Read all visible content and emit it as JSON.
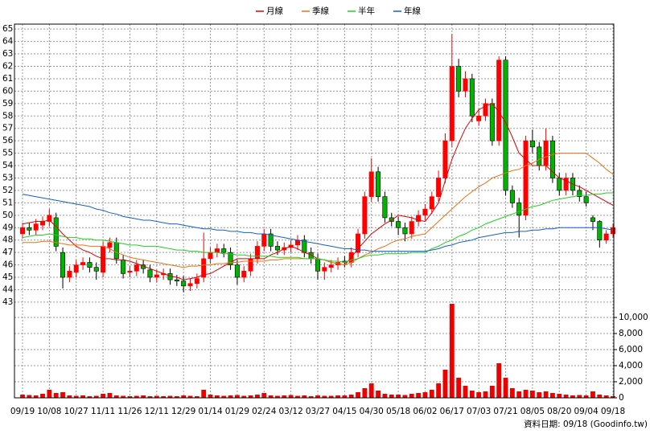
{
  "chart_data": [
    {
      "type": "candlestick",
      "categories": [
        "09/19",
        null,
        null,
        null,
        "10/08",
        null,
        null,
        null,
        "10/27",
        null,
        null,
        null,
        "11/11",
        null,
        null,
        null,
        "11/26",
        null,
        null,
        null,
        "12/11",
        null,
        null,
        null,
        "12/29",
        null,
        null,
        null,
        "01/14",
        null,
        null,
        null,
        "01/29",
        null,
        null,
        null,
        "02/24",
        null,
        null,
        null,
        "03/12",
        null,
        null,
        null,
        "03/27",
        null,
        null,
        null,
        "04/15",
        null,
        null,
        null,
        "04/30",
        null,
        null,
        null,
        "05/18",
        null,
        null,
        null,
        "06/02",
        null,
        null,
        null,
        "06/17",
        null,
        null,
        null,
        "07/03",
        null,
        null,
        null,
        "07/21",
        null,
        null,
        null,
        "08/05",
        null,
        null,
        null,
        "08/20",
        null,
        null,
        null,
        "09/04",
        null,
        null,
        null,
        "09/18"
      ],
      "open": [
        48.5,
        49,
        48.8,
        49.2,
        49.5,
        49.8,
        47,
        45,
        45.4,
        46,
        46.2,
        45.8,
        45.4,
        47.4,
        47.8,
        46.4,
        45.4,
        45.5,
        46,
        45.6,
        45,
        45.2,
        45.3,
        44.8,
        44.7,
        44.3,
        44.5,
        45,
        46.5,
        47,
        47.3,
        47,
        46,
        45,
        45.5,
        46.5,
        47.5,
        48.5,
        47.5,
        47.2,
        47.4,
        47.6,
        48,
        47,
        46.5,
        45.5,
        45.8,
        46,
        46.3,
        46.2,
        47,
        48.5,
        51.5,
        53.5,
        51.5,
        49.8,
        49.5,
        49,
        48.5,
        49.5,
        50,
        50.5,
        51.5,
        53,
        56,
        62,
        60,
        61,
        57.6,
        58,
        59,
        56,
        62.5,
        52,
        51,
        50,
        56,
        55.5,
        54,
        56,
        53,
        52,
        53,
        52,
        51.5,
        49.8,
        49.5,
        48,
        48.5
      ],
      "high": [
        49.4,
        49.4,
        49.7,
        49.9,
        50.5,
        50.2,
        47.4,
        45.9,
        46.4,
        46.6,
        46.6,
        46.2,
        47.9,
        48.2,
        48.2,
        46.8,
        45.9,
        46.4,
        46.4,
        46,
        45.6,
        45.7,
        45.7,
        45.2,
        45.1,
        44.9,
        45.3,
        48.6,
        47.4,
        47.7,
        47.7,
        47.4,
        46.4,
        45.9,
        46.9,
        47.9,
        48.9,
        48.9,
        47.9,
        47.8,
        48,
        48.4,
        48.4,
        47.4,
        46.9,
        46.2,
        46.4,
        46.6,
        46.7,
        47.4,
        48.9,
        51.9,
        54.6,
        53.9,
        51.9,
        50.2,
        49.9,
        49.4,
        49.9,
        50.4,
        50.9,
        51.9,
        53.6,
        56.6,
        64.6,
        62.6,
        61.6,
        61.4,
        58.6,
        59.4,
        59.4,
        62.8,
        62.8,
        52.4,
        51.4,
        56.4,
        56.9,
        55.9,
        57,
        56.4,
        53.4,
        53.4,
        53.4,
        52.4,
        51.9,
        50,
        49.6,
        48.8,
        49.3
      ],
      "low": [
        48.1,
        48.4,
        48.4,
        48.8,
        49.1,
        47.1,
        44.1,
        44.6,
        45,
        45.6,
        45.4,
        44.8,
        45,
        47,
        46.1,
        44.9,
        45,
        45.1,
        45.3,
        44.6,
        44.6,
        44.8,
        44.4,
        44.3,
        43.8,
        43.9,
        44.1,
        44.6,
        46.1,
        46.6,
        46.6,
        45.6,
        44.4,
        44.6,
        45.1,
        46.1,
        47.1,
        47.1,
        46.8,
        46.8,
        47,
        47.2,
        46.6,
        46.1,
        44.8,
        44.8,
        45.4,
        45.6,
        45.8,
        45.8,
        46.6,
        48.1,
        51.1,
        51.1,
        49.4,
        49.1,
        48.4,
        47.9,
        48.1,
        49.1,
        49.6,
        50.1,
        51.1,
        52.6,
        55.5,
        59.5,
        59.5,
        57.5,
        57.2,
        57.6,
        55.6,
        55.6,
        51.6,
        50.6,
        48.2,
        49.6,
        55,
        53.6,
        53.6,
        52.6,
        51.6,
        51.6,
        51.6,
        51.1,
        50.7,
        48.8,
        47.4,
        47.7,
        48.2
      ],
      "close": [
        49,
        48.8,
        49.3,
        49.5,
        50,
        47.5,
        45,
        45.5,
        46,
        46.2,
        45.8,
        45.5,
        47.5,
        47.8,
        46.5,
        45.3,
        45.5,
        46,
        45.7,
        45,
        45.2,
        45.3,
        44.8,
        44.7,
        44.3,
        44.5,
        44.9,
        46.5,
        47,
        47.3,
        47,
        46,
        45,
        45.5,
        46.5,
        47.5,
        48.5,
        47.5,
        47.2,
        47.4,
        47.6,
        48,
        47,
        46.5,
        45.5,
        45.8,
        46,
        46.2,
        46.2,
        47,
        48.5,
        51.5,
        53.5,
        51.5,
        49.8,
        49.5,
        49,
        48.5,
        49.5,
        50,
        50.5,
        51.5,
        53,
        56,
        62,
        60,
        61,
        58,
        58,
        59,
        56,
        62.5,
        52,
        51,
        50,
        56,
        55.5,
        54,
        56,
        53,
        52,
        53,
        52,
        51.5,
        51,
        49.5,
        48,
        48.5,
        49
      ],
      "up_color": "#ff0000",
      "down_color": "#00b400",
      "series": [
        {
          "name": "月線",
          "color": "#e00000",
          "values": [
            49.3,
            49.4,
            49.5,
            49.5,
            49.6,
            49.1,
            48.5,
            48,
            47.5,
            47.2,
            47,
            46.7,
            46.5,
            46.5,
            46.4,
            46.4,
            46.3,
            46.1,
            45.9,
            45.7,
            45.5,
            45.3,
            45.1,
            45,
            44.8,
            44.9,
            45,
            45.2,
            45.3,
            45.6,
            45.9,
            46.2,
            46.5,
            46.5,
            46.5,
            46.5,
            46.5,
            46.8,
            47,
            47.3,
            47.5,
            47.3,
            47,
            46.8,
            46.5,
            46.4,
            46.2,
            46.1,
            46,
            46.6,
            47.3,
            47.9,
            48.5,
            48.9,
            49.3,
            49.6,
            50,
            49.9,
            49.8,
            49.6,
            49.5,
            50.2,
            51,
            52.8,
            54.5,
            55.8,
            57,
            57.8,
            58.5,
            58.8,
            59,
            58.3,
            57.5,
            56.3,
            55,
            54.5,
            54,
            54,
            54,
            53.5,
            53,
            52.8,
            52.5,
            52.3,
            52,
            51.7,
            51.4,
            51.1,
            50.8
          ]
        },
        {
          "name": "季線",
          "color": "#f07010",
          "values": [
            47.8,
            47.8,
            47.8,
            47.9,
            47.9,
            47.8,
            47.7,
            47.6,
            47.6,
            47.6,
            47.5,
            47.5,
            47.5,
            47.3,
            47,
            46.8,
            46.6,
            46.5,
            46.4,
            46.3,
            46.2,
            46.1,
            46,
            45.9,
            45.8,
            45.9,
            45.9,
            46,
            46,
            46.1,
            46.1,
            46.2,
            46.2,
            46.3,
            46.3,
            46.3,
            46.3,
            46.4,
            46.4,
            46.5,
            46.5,
            46.5,
            46.5,
            46.5,
            46.5,
            46.4,
            46.2,
            46.1,
            46,
            46.2,
            46.5,
            46.8,
            47,
            47.3,
            47.5,
            47.8,
            48,
            48.1,
            48.3,
            48.4,
            48.5,
            49,
            49.5,
            50,
            50.5,
            51,
            51.5,
            51.9,
            52.3,
            52.6,
            53,
            53.2,
            53.4,
            53.6,
            53.7,
            54,
            54.2,
            54.5,
            54.7,
            54.9,
            55,
            55,
            55,
            55,
            55,
            54.6,
            54.2,
            53.7,
            53.3
          ]
        },
        {
          "name": "半年",
          "color": "#20d020",
          "values": [
            48.2,
            48.3,
            48.4,
            48.4,
            48.5,
            48.4,
            48.3,
            48.2,
            48.2,
            48.1,
            48.1,
            48,
            48,
            47.9,
            47.8,
            47.7,
            47.6,
            47.6,
            47.5,
            47.5,
            47.5,
            47.4,
            47.3,
            47.2,
            47.2,
            47.1,
            47.1,
            47,
            47,
            47,
            46.9,
            46.9,
            46.8,
            46.8,
            46.7,
            46.7,
            46.7,
            46.7,
            46.6,
            46.6,
            46.6,
            46.6,
            46.5,
            46.5,
            46.5,
            46.4,
            46.3,
            46.3,
            46.2,
            46.4,
            46.5,
            46.7,
            46.8,
            46.8,
            46.9,
            46.9,
            46.9,
            46.9,
            47,
            47,
            47,
            47.3,
            47.5,
            47.8,
            48,
            48.3,
            48.5,
            48.8,
            49,
            49.3,
            49.5,
            49.7,
            49.9,
            50.1,
            50.3,
            50.5,
            50.7,
            50.8,
            51,
            51.2,
            51.3,
            51.4,
            51.5,
            51.6,
            51.6,
            51.7,
            51.7,
            51.8,
            51.8
          ]
        },
        {
          "name": "年線",
          "color": "#1060d0",
          "values": [
            51.7,
            51.6,
            51.5,
            51.4,
            51.3,
            51.2,
            51.1,
            51,
            50.9,
            50.8,
            50.7,
            50.5,
            50.4,
            50.2,
            50.1,
            49.9,
            49.8,
            49.7,
            49.6,
            49.6,
            49.5,
            49.4,
            49.3,
            49.3,
            49.2,
            49.1,
            49,
            48.9,
            48.9,
            48.8,
            48.8,
            48.7,
            48.7,
            48.6,
            48.6,
            48.5,
            48.5,
            48.4,
            48.3,
            48.2,
            48.1,
            48,
            47.9,
            47.8,
            47.7,
            47.6,
            47.5,
            47.4,
            47.3,
            47.3,
            47.2,
            47.2,
            47.1,
            47.1,
            47.1,
            47.1,
            47.1,
            47.1,
            47.1,
            47.1,
            47.1,
            47.2,
            47.3,
            47.5,
            47.6,
            47.8,
            47.9,
            48,
            48.2,
            48.3,
            48.4,
            48.5,
            48.6,
            48.6,
            48.7,
            48.7,
            48.8,
            48.8,
            48.9,
            48.9,
            49,
            49,
            49,
            49,
            49,
            49,
            49,
            48.9,
            48.8
          ]
        }
      ],
      "ylim": [
        42.8,
        65.4
      ],
      "yticks": [
        43,
        44,
        45,
        46,
        47,
        48,
        49,
        50,
        51,
        52,
        53,
        54,
        55,
        56,
        57,
        58,
        59,
        60,
        61,
        62,
        63,
        64,
        65
      ],
      "grid": true
    },
    {
      "type": "bar",
      "values": [
        400,
        350,
        300,
        500,
        1000,
        600,
        700,
        300,
        250,
        300,
        200,
        250,
        500,
        600,
        300,
        250,
        200,
        250,
        300,
        200,
        250,
        200,
        250,
        200,
        300,
        250,
        200,
        1000,
        400,
        300,
        250,
        300,
        350,
        250,
        300,
        400,
        600,
        300,
        250,
        300,
        350,
        250,
        300,
        200,
        300,
        250,
        250,
        300,
        300,
        400,
        700,
        1200,
        1800,
        900,
        500,
        400,
        400,
        350,
        500,
        600,
        700,
        1000,
        1800,
        3500,
        11700,
        2500,
        1500,
        900,
        700,
        800,
        1500,
        4300,
        2500,
        1200,
        800,
        1000,
        900,
        700,
        800,
        600,
        500,
        400,
        300,
        350,
        300,
        800,
        400,
        300,
        200
      ],
      "color": "#ee0000",
      "ylim": [
        0,
        11700
      ],
      "yticks": [
        0,
        {
          "value": 2000,
          "label": "2,000"
        },
        {
          "value": 4000,
          "label": "4,000"
        },
        {
          "value": 6000,
          "label": "6,000"
        },
        {
          "value": 8000,
          "label": "8,000"
        },
        {
          "value": 10000,
          "label": "10,000"
        }
      ],
      "grid": true
    }
  ],
  "footer": "資料日期: 09/18 (Goodinfo.tw)"
}
